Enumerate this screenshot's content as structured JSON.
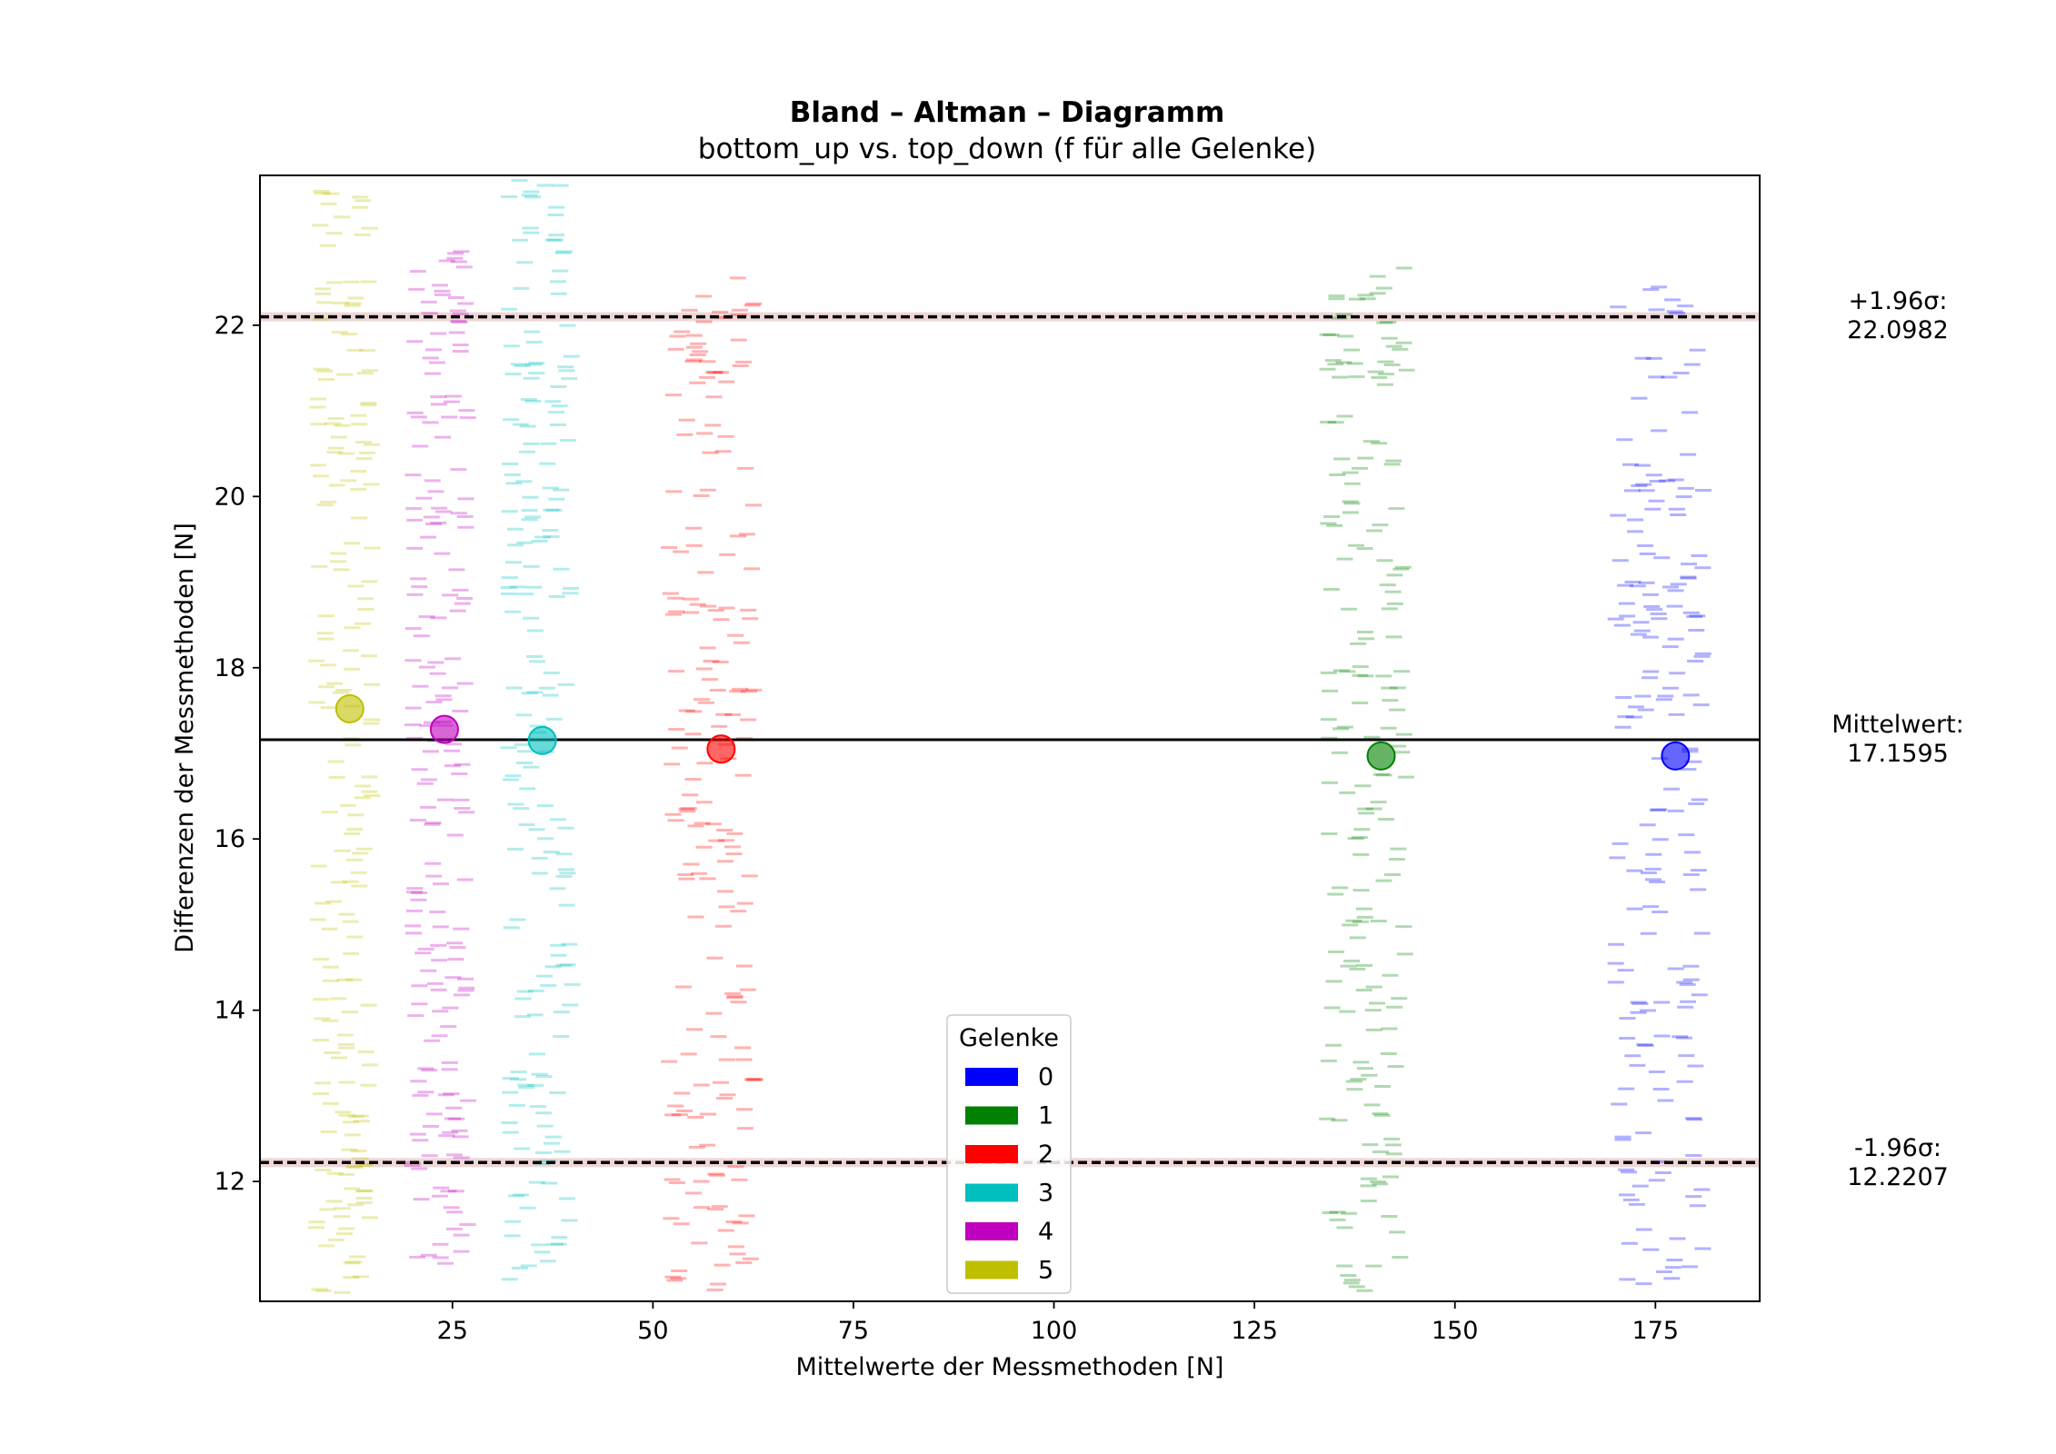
{
  "chart_data": {
    "type": "scatter",
    "title": "Bland – Altman – Diagramm",
    "subtitle": "bottom_up vs. top_down (f für alle Gelenke)",
    "xlabel": "Mittelwerte der Messmethoden [N]",
    "ylabel": "Differenzen der Messmethoden [N]",
    "xlim": [
      1,
      188
    ],
    "ylim": [
      10.6,
      23.75
    ],
    "xticks": [
      "25",
      "50",
      "75",
      "100",
      "125",
      "150",
      "175"
    ],
    "xtick_values": [
      25,
      50,
      75,
      100,
      125,
      150,
      175
    ],
    "yticks": [
      "12",
      "14",
      "16",
      "18",
      "20",
      "22"
    ],
    "ytick_values": [
      12,
      14,
      16,
      18,
      20,
      22
    ],
    "grid": false,
    "reference_lines": [
      {
        "name": "upper",
        "label": "+1.96σ:",
        "value_text": "22.0982",
        "value": 22.0982,
        "style": "dashed"
      },
      {
        "name": "mean",
        "label": "Mittelwert:",
        "value_text": "17.1595",
        "value": 17.1595,
        "style": "solid"
      },
      {
        "name": "lower",
        "label": "-1.96σ:",
        "value_text": "12.2207",
        "value": 12.2207,
        "style": "dashed"
      }
    ],
    "legend": {
      "title": "Gelenke",
      "placement": "lower-center",
      "entries": [
        {
          "label": "0",
          "color": "#0000ff"
        },
        {
          "label": "1",
          "color": "#008000"
        },
        {
          "label": "2",
          "color": "#ff0000"
        },
        {
          "label": "3",
          "color": "#00bfbf"
        },
        {
          "label": "4",
          "color": "#bf00bf"
        },
        {
          "label": "5",
          "color": "#bfbf00"
        }
      ]
    },
    "series": [
      {
        "name": "0",
        "color": "#0000ff",
        "mean_point": [
          177.5,
          16.97
        ],
        "x_range": [
          170,
          181
        ],
        "y_range": [
          10.7,
          22.5
        ]
      },
      {
        "name": "1",
        "color": "#008000",
        "mean_point": [
          140.8,
          16.97
        ],
        "x_range": [
          134,
          144
        ],
        "y_range": [
          10.7,
          22.8
        ]
      },
      {
        "name": "2",
        "color": "#ff0000",
        "mean_point": [
          58.5,
          17.05
        ],
        "x_range": [
          52,
          63
        ],
        "y_range": [
          10.7,
          22.6
        ]
      },
      {
        "name": "3",
        "color": "#00bfbf",
        "mean_point": [
          36.2,
          17.15
        ],
        "x_range": [
          32,
          40
        ],
        "y_range": [
          10.8,
          23.7
        ]
      },
      {
        "name": "4",
        "color": "#bf00bf",
        "mean_point": [
          24.0,
          17.28
        ],
        "x_range": [
          20,
          27
        ],
        "y_range": [
          10.9,
          23.1
        ]
      },
      {
        "name": "5",
        "color": "#bfbf00",
        "mean_point": [
          12.2,
          17.52
        ],
        "x_range": [
          8,
          15
        ],
        "y_range": [
          10.7,
          23.7
        ]
      }
    ]
  }
}
